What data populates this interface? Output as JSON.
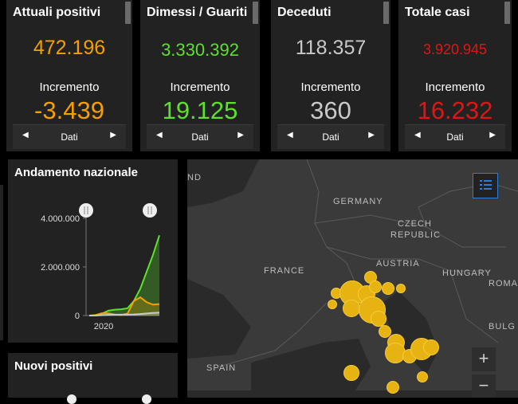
{
  "cards": [
    {
      "title": "Attuali positivi",
      "value": "472.196",
      "value_color": "#f5a000",
      "incr_label": "Incremento",
      "incr_value": "-3.439",
      "incr_color": "#f5a000",
      "nav_label": "Dati"
    },
    {
      "title": "Dimessi / Guariti",
      "value": "3.330.392",
      "value_color": "#5ee02e",
      "incr_label": "Incremento",
      "incr_value": "19.125",
      "incr_color": "#5ee02e",
      "nav_label": "Dati"
    },
    {
      "title": "Deceduti",
      "value": "118.357",
      "value_color": "#c9c9c9",
      "incr_label": "Incremento",
      "incr_value": "360",
      "incr_color": "#c9c9c9",
      "nav_label": "Dati"
    },
    {
      "title": "Totale casi",
      "value": "3.920.945",
      "value_color": "#e01515",
      "incr_label": "Incremento",
      "incr_value": "16.232",
      "incr_color": "#e01515",
      "nav_label": "Dati"
    }
  ],
  "trend": {
    "title": "Andamento nazionale",
    "chart_data": {
      "type": "area",
      "title": "Andamento nazionale",
      "xlabel": "",
      "ylabel": "",
      "ylim": [
        0,
        4000000
      ],
      "yticks": [
        "4.000.000",
        "2.000.000",
        "0"
      ],
      "xticks": [
        "2020"
      ],
      "series": [
        {
          "color": "#5ee02e",
          "values": [
            0,
            5000,
            80000,
            200000,
            240000,
            260000,
            300000,
            600000,
            1100000,
            1800000,
            2500000,
            3300000
          ]
        },
        {
          "color": "#f5a000",
          "values": [
            0,
            20000,
            100000,
            90000,
            40000,
            20000,
            80000,
            600000,
            750000,
            550000,
            450000,
            470000
          ]
        },
        {
          "color": "#c9c9c9",
          "values": [
            0,
            1000,
            15000,
            30000,
            34000,
            35000,
            36000,
            45000,
            60000,
            85000,
            105000,
            118000
          ]
        }
      ]
    }
  },
  "new_positive": {
    "title": "Nuovi positivi"
  },
  "map": {
    "labels": {
      "germany": "GERMANY",
      "czech": "CZECH",
      "republic": "REPUBLIC",
      "austria": "AUSTRIA",
      "hungary": "HUNGARY",
      "france": "FRANCE",
      "spain": "SPAIN",
      "roma": "ROMA",
      "bulg": "BULG",
      "nd": "ND"
    },
    "zoom_in": "+",
    "zoom_out": "−"
  }
}
